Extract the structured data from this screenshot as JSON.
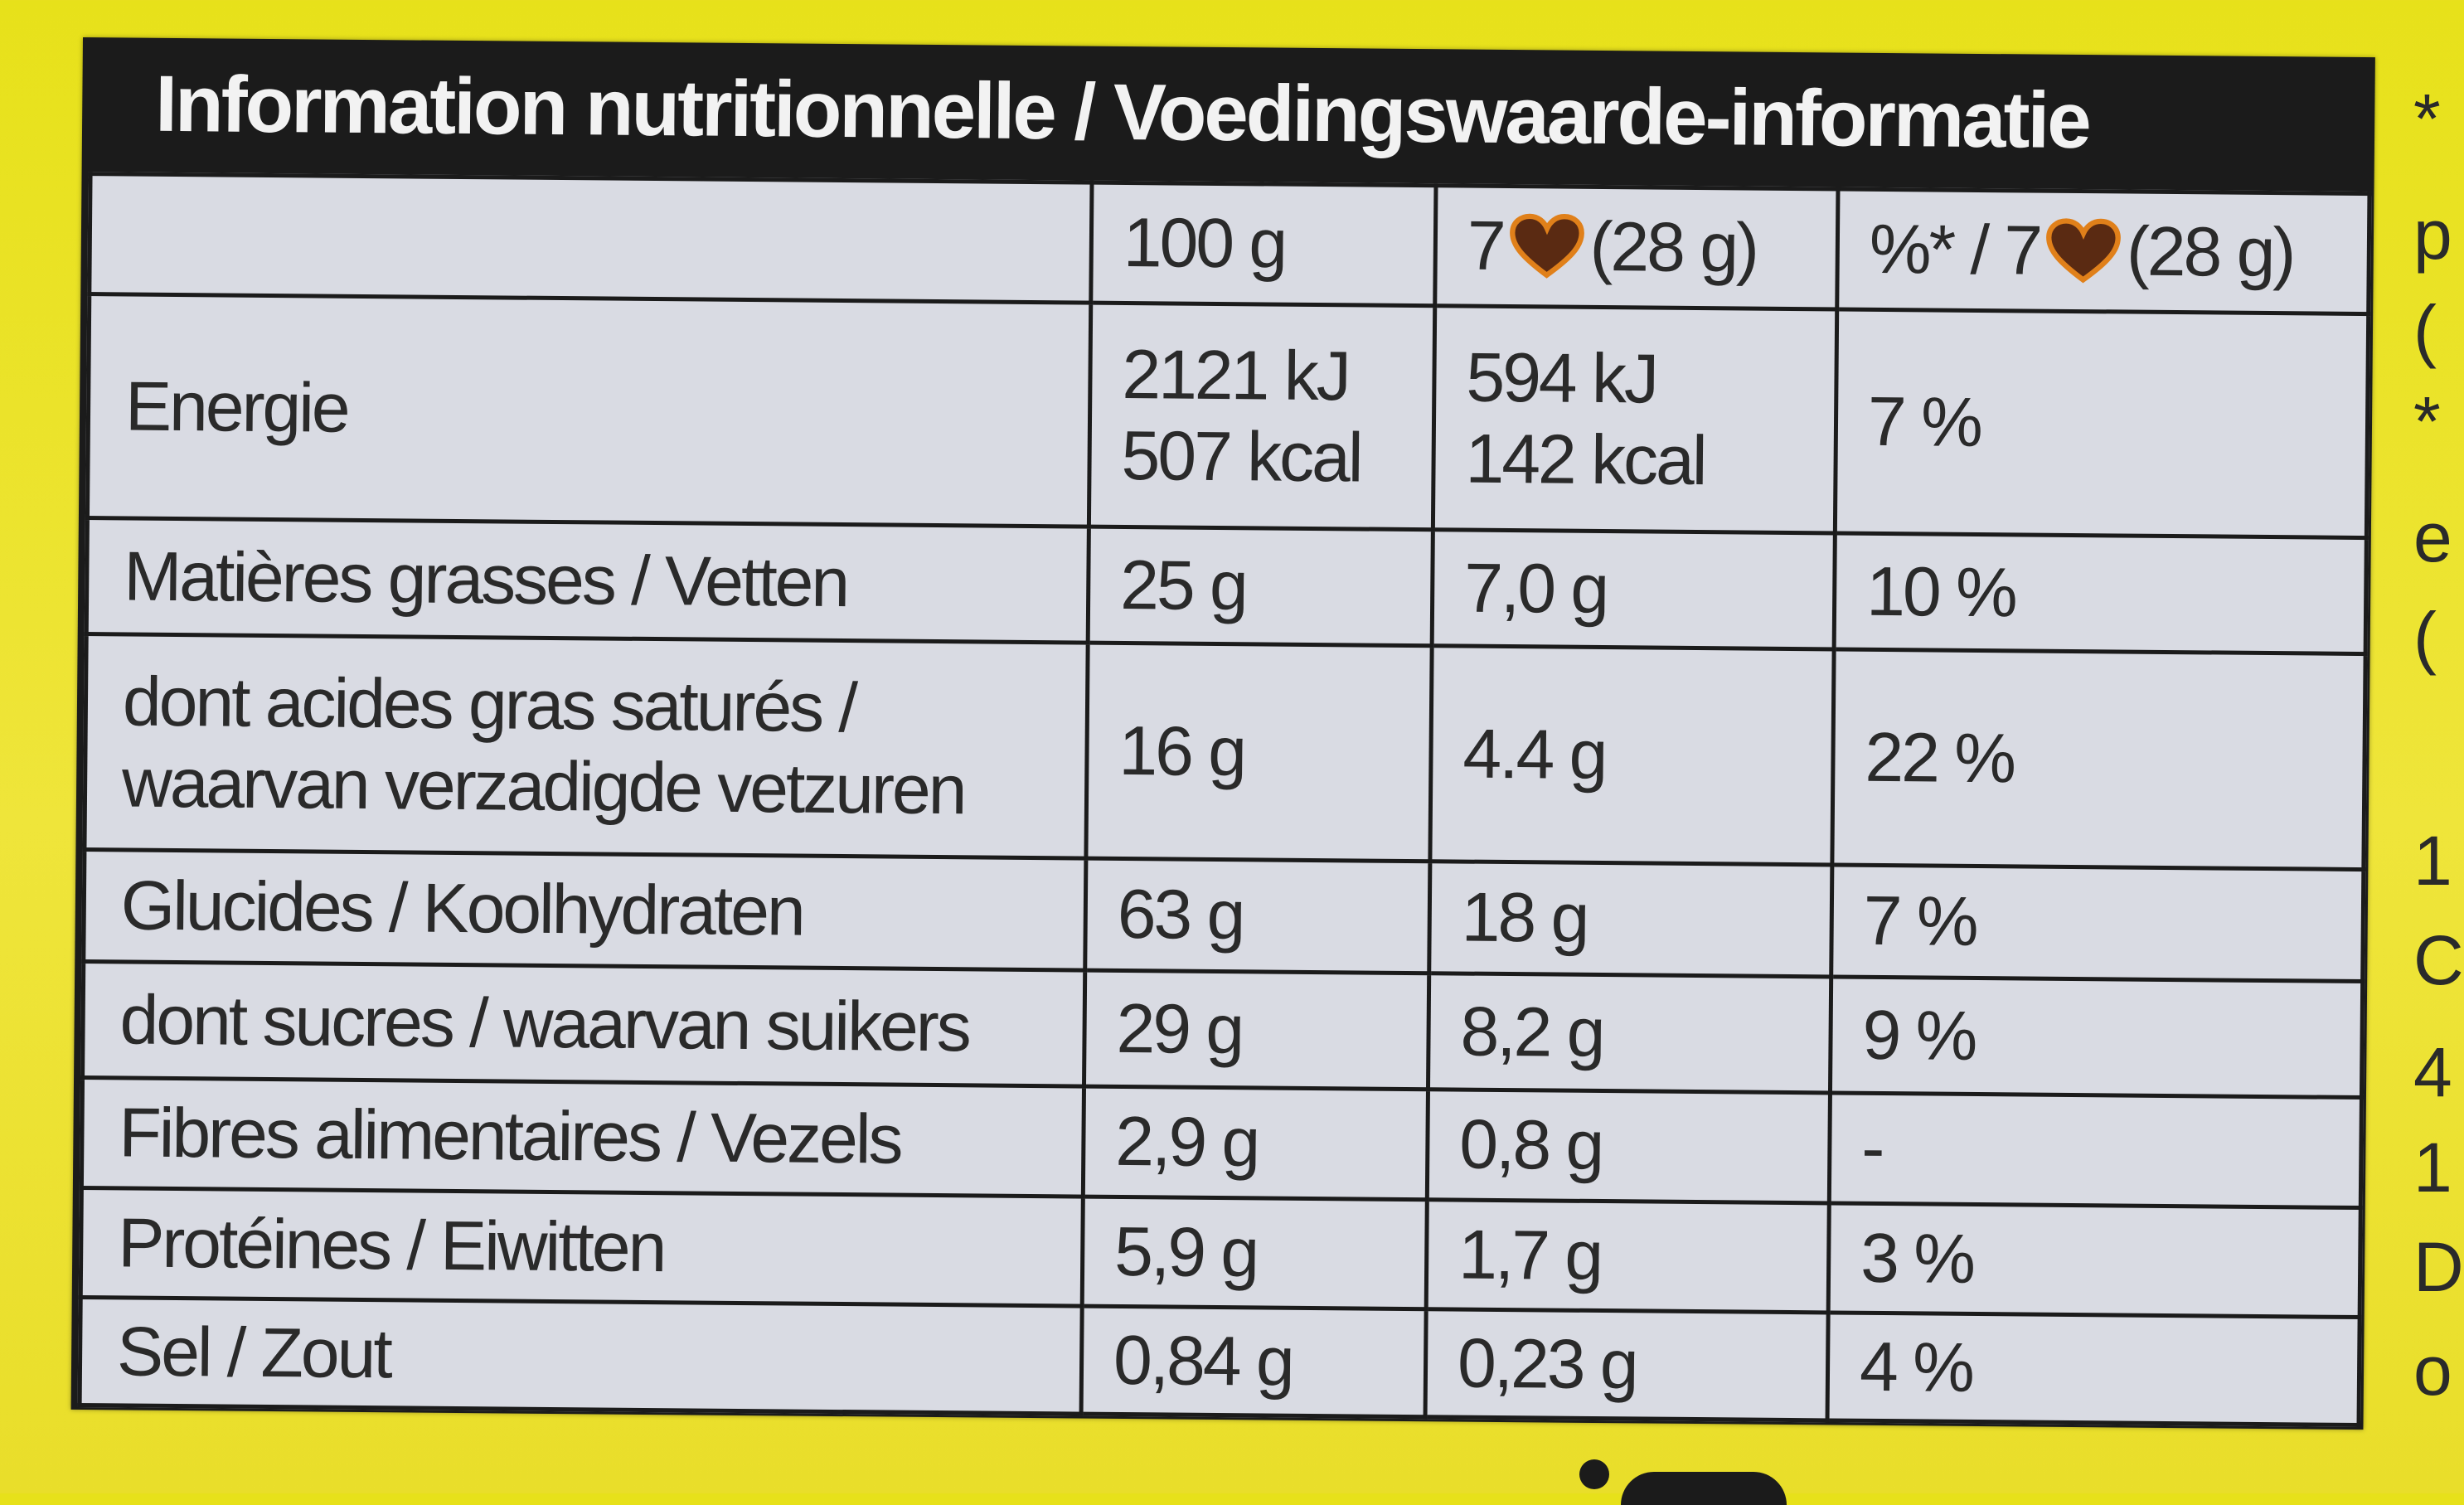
{
  "header": {
    "title": "Information nutritionnelle / Voedingswaarde-informatie"
  },
  "columns": {
    "per_100g": "100 g",
    "portion_prefix": "7",
    "portion_suffix": "(28 g)",
    "percent_prefix": "%* / 7",
    "percent_suffix": "(28 g)",
    "portion_icon": "heart-chocolate-icon"
  },
  "rows": [
    {
      "label": "Energie",
      "per_100g": [
        "2121 kJ",
        "507 kcal"
      ],
      "portion": [
        "594 kJ",
        "142 kcal"
      ],
      "percent": "7 %"
    },
    {
      "label": "Matières grasses / Vetten",
      "per_100g": "25 g",
      "portion": "7,0 g",
      "percent": "10 %"
    },
    {
      "label": [
        "dont acides gras saturés /",
        "waarvan verzadigde vetzuren"
      ],
      "per_100g": "16 g",
      "portion": "4.4 g",
      "percent": "22 %"
    },
    {
      "label": "Glucides / Koolhydraten",
      "per_100g": "63 g",
      "portion": "18 g",
      "percent": "7 %"
    },
    {
      "label": "dont sucres / waarvan suikers",
      "per_100g": "29 g",
      "portion": "8,2 g",
      "percent": "9 %"
    },
    {
      "label": "Fibres alimentaires / Vezels",
      "per_100g": "2,9 g",
      "portion": "0,8 g",
      "percent": "-"
    },
    {
      "label": "Protéines / Eiwitten",
      "per_100g": "5,9 g",
      "portion": "1,7 g",
      "percent": "3 %"
    },
    {
      "label": "Sel / Zout",
      "per_100g": "0,84 g",
      "portion": "0,23 g",
      "percent": "4 %"
    }
  ],
  "right_edge_glyphs": [
    "*",
    "p",
    "(",
    "*",
    "e",
    "(",
    "1",
    "C",
    "4",
    "1",
    "D",
    "o"
  ],
  "colors": {
    "packaging": "#e7e11a",
    "panel": "#1b1b1b",
    "table": "#d9dbe3",
    "heart_fill": "#5a2a12",
    "heart_outline": "#e0801a"
  }
}
